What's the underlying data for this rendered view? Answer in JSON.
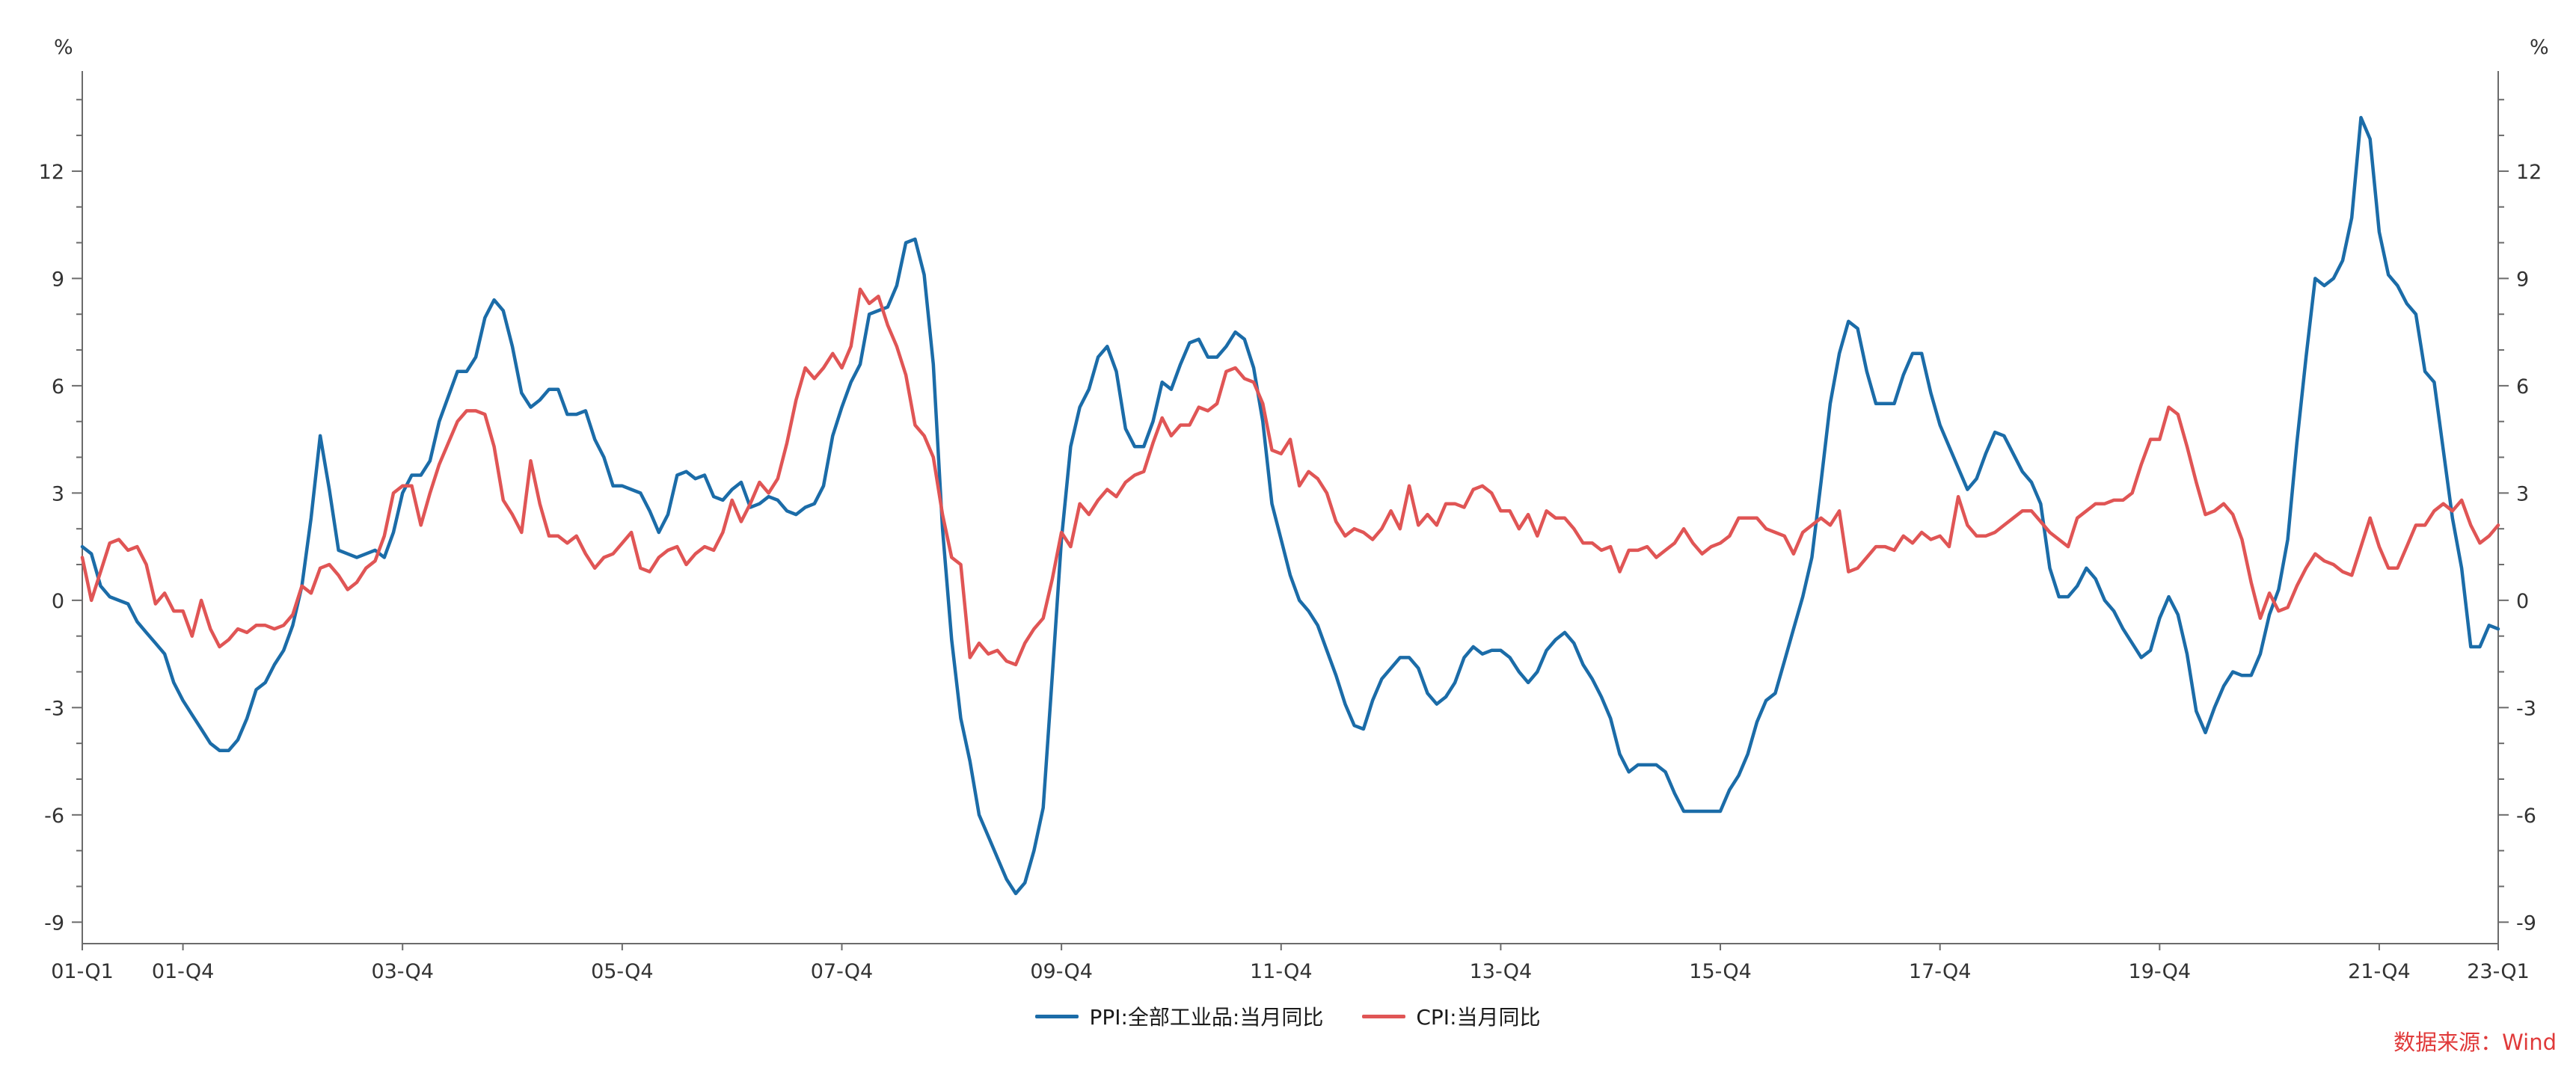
{
  "source": "数据来源：Wind",
  "chart_data": {
    "type": "line",
    "title": "",
    "y_unit": "%",
    "y_ticks": [
      -9,
      -6,
      -3,
      0,
      3,
      6,
      9,
      12
    ],
    "y_range": [
      -9.6,
      14.8
    ],
    "y_minor_step": 1,
    "x_freq": "monthly",
    "x_start": "2001-01",
    "x_end": "2023-01",
    "grid": "off",
    "legend_position": "bottom-center",
    "axis_color": "#6b6b6b",
    "text_color": "#333333",
    "source_color": "#e03a3a",
    "x_ticks": [
      {
        "label": "01-Q1",
        "i": 0
      },
      {
        "label": "01-Q4",
        "i": 11
      },
      {
        "label": "03-Q4",
        "i": 35
      },
      {
        "label": "05-Q4",
        "i": 59
      },
      {
        "label": "07-Q4",
        "i": 83
      },
      {
        "label": "09-Q4",
        "i": 107
      },
      {
        "label": "11-Q4",
        "i": 131
      },
      {
        "label": "13-Q4",
        "i": 155
      },
      {
        "label": "15-Q4",
        "i": 179
      },
      {
        "label": "17-Q4",
        "i": 203
      },
      {
        "label": "19-Q4",
        "i": 227
      },
      {
        "label": "21-Q4",
        "i": 251
      },
      {
        "label": "23-Q1",
        "i": 264
      }
    ],
    "series": [
      {
        "name": "PPI:全部工业品:当月同比",
        "color": "#1b6ca8",
        "values": [
          1.5,
          1.3,
          0.4,
          0.1,
          0.0,
          -0.1,
          -0.6,
          -0.9,
          -1.2,
          -1.5,
          -2.3,
          -2.8,
          -3.2,
          -3.6,
          -4.0,
          -4.2,
          -4.2,
          -3.9,
          -3.3,
          -2.5,
          -2.3,
          -1.8,
          -1.4,
          -0.7,
          0.4,
          2.3,
          4.6,
          3.1,
          1.4,
          1.3,
          1.2,
          1.3,
          1.4,
          1.2,
          1.9,
          3.0,
          3.5,
          3.5,
          3.9,
          5.0,
          5.7,
          6.4,
          6.4,
          6.8,
          7.9,
          8.4,
          8.1,
          7.1,
          5.8,
          5.4,
          5.6,
          5.9,
          5.9,
          5.2,
          5.2,
          5.3,
          4.5,
          4.0,
          3.2,
          3.2,
          3.1,
          3.0,
          2.5,
          1.9,
          2.4,
          3.5,
          3.6,
          3.4,
          3.5,
          2.9,
          2.8,
          3.1,
          3.3,
          2.6,
          2.7,
          2.9,
          2.8,
          2.5,
          2.4,
          2.6,
          2.7,
          3.2,
          4.6,
          5.4,
          6.1,
          6.6,
          8.0,
          8.1,
          8.2,
          8.8,
          10.0,
          10.1,
          9.1,
          6.6,
          2.0,
          -1.1,
          -3.3,
          -4.5,
          -6.0,
          -6.6,
          -7.2,
          -7.8,
          -8.2,
          -7.9,
          -7.0,
          -5.8,
          -2.1,
          1.7,
          4.3,
          5.4,
          5.9,
          6.8,
          7.1,
          6.4,
          4.8,
          4.3,
          4.3,
          5.0,
          6.1,
          5.9,
          6.6,
          7.2,
          7.3,
          6.8,
          6.8,
          7.1,
          7.5,
          7.3,
          6.5,
          5.0,
          2.7,
          1.7,
          0.7,
          0.0,
          -0.3,
          -0.7,
          -1.4,
          -2.1,
          -2.9,
          -3.5,
          -3.6,
          -2.8,
          -2.2,
          -1.9,
          -1.6,
          -1.6,
          -1.9,
          -2.6,
          -2.9,
          -2.7,
          -2.3,
          -1.6,
          -1.3,
          -1.5,
          -1.4,
          -1.4,
          -1.6,
          -2.0,
          -2.3,
          -2.0,
          -1.4,
          -1.1,
          -0.9,
          -1.2,
          -1.8,
          -2.2,
          -2.7,
          -3.3,
          -4.3,
          -4.8,
          -4.6,
          -4.6,
          -4.6,
          -4.8,
          -5.4,
          -5.9,
          -5.9,
          -5.9,
          -5.9,
          -5.9,
          -5.3,
          -4.9,
          -4.3,
          -3.4,
          -2.8,
          -2.6,
          -1.7,
          -0.8,
          0.1,
          1.2,
          3.3,
          5.5,
          6.9,
          7.8,
          7.6,
          6.4,
          5.5,
          5.5,
          5.5,
          6.3,
          6.9,
          6.9,
          5.8,
          4.9,
          4.3,
          3.7,
          3.1,
          3.4,
          4.1,
          4.7,
          4.6,
          4.1,
          3.6,
          3.3,
          2.7,
          0.9,
          0.1,
          0.1,
          0.4,
          0.9,
          0.6,
          0.0,
          -0.3,
          -0.8,
          -1.2,
          -1.6,
          -1.4,
          -0.5,
          0.1,
          -0.4,
          -1.5,
          -3.1,
          -3.7,
          -3.0,
          -2.4,
          -2.0,
          -2.1,
          -2.1,
          -1.5,
          -0.4,
          0.3,
          1.7,
          4.4,
          6.8,
          9.0,
          8.8,
          9.0,
          9.5,
          10.7,
          13.5,
          12.9,
          10.3,
          9.1,
          8.8,
          8.3,
          8.0,
          6.4,
          6.1,
          4.2,
          2.3,
          0.9,
          -1.3,
          -1.3,
          -0.7,
          -0.8
        ]
      },
      {
        "name": "CPI:当月同比",
        "color": "#e05555",
        "values": [
          1.2,
          0.0,
          0.8,
          1.6,
          1.7,
          1.4,
          1.5,
          1.0,
          -0.1,
          0.2,
          -0.3,
          -0.3,
          -1.0,
          0.0,
          -0.8,
          -1.3,
          -1.1,
          -0.8,
          -0.9,
          -0.7,
          -0.7,
          -0.8,
          -0.7,
          -0.4,
          0.4,
          0.2,
          0.9,
          1.0,
          0.7,
          0.3,
          0.5,
          0.9,
          1.1,
          1.8,
          3.0,
          3.2,
          3.2,
          2.1,
          3.0,
          3.8,
          4.4,
          5.0,
          5.3,
          5.3,
          5.2,
          4.3,
          2.8,
          2.4,
          1.9,
          3.9,
          2.7,
          1.8,
          1.8,
          1.6,
          1.8,
          1.3,
          0.9,
          1.2,
          1.3,
          1.6,
          1.9,
          0.9,
          0.8,
          1.2,
          1.4,
          1.5,
          1.0,
          1.3,
          1.5,
          1.4,
          1.9,
          2.8,
          2.2,
          2.7,
          3.3,
          3.0,
          3.4,
          4.4,
          5.6,
          6.5,
          6.2,
          6.5,
          6.9,
          6.5,
          7.1,
          8.7,
          8.3,
          8.5,
          7.7,
          7.1,
          6.3,
          4.9,
          4.6,
          4.0,
          2.4,
          1.2,
          1.0,
          -1.6,
          -1.2,
          -1.5,
          -1.4,
          -1.7,
          -1.8,
          -1.2,
          -0.8,
          -0.5,
          0.6,
          1.9,
          1.5,
          2.7,
          2.4,
          2.8,
          3.1,
          2.9,
          3.3,
          3.5,
          3.6,
          4.4,
          5.1,
          4.6,
          4.9,
          4.9,
          5.4,
          5.3,
          5.5,
          6.4,
          6.5,
          6.2,
          6.1,
          5.5,
          4.2,
          4.1,
          4.5,
          3.2,
          3.6,
          3.4,
          3.0,
          2.2,
          1.8,
          2.0,
          1.9,
          1.7,
          2.0,
          2.5,
          2.0,
          3.2,
          2.1,
          2.4,
          2.1,
          2.7,
          2.7,
          2.6,
          3.1,
          3.2,
          3.0,
          2.5,
          2.5,
          2.0,
          2.4,
          1.8,
          2.5,
          2.3,
          2.3,
          2.0,
          1.6,
          1.6,
          1.4,
          1.5,
          0.8,
          1.4,
          1.4,
          1.5,
          1.2,
          1.4,
          1.6,
          2.0,
          1.6,
          1.3,
          1.5,
          1.6,
          1.8,
          2.3,
          2.3,
          2.3,
          2.0,
          1.9,
          1.8,
          1.3,
          1.9,
          2.1,
          2.3,
          2.1,
          2.5,
          0.8,
          0.9,
          1.2,
          1.5,
          1.5,
          1.4,
          1.8,
          1.6,
          1.9,
          1.7,
          1.8,
          1.5,
          2.9,
          2.1,
          1.8,
          1.8,
          1.9,
          2.1,
          2.3,
          2.5,
          2.5,
          2.2,
          1.9,
          1.7,
          1.5,
          2.3,
          2.5,
          2.7,
          2.7,
          2.8,
          2.8,
          3.0,
          3.8,
          4.5,
          4.5,
          5.4,
          5.2,
          4.3,
          3.3,
          2.4,
          2.5,
          2.7,
          2.4,
          1.7,
          0.5,
          -0.5,
          0.2,
          -0.3,
          -0.2,
          0.4,
          0.9,
          1.3,
          1.1,
          1.0,
          0.8,
          0.7,
          1.5,
          2.3,
          1.5,
          0.9,
          0.9,
          1.5,
          2.1,
          2.1,
          2.5,
          2.7,
          2.5,
          2.8,
          2.1,
          1.6,
          1.8,
          2.1
        ]
      }
    ]
  }
}
